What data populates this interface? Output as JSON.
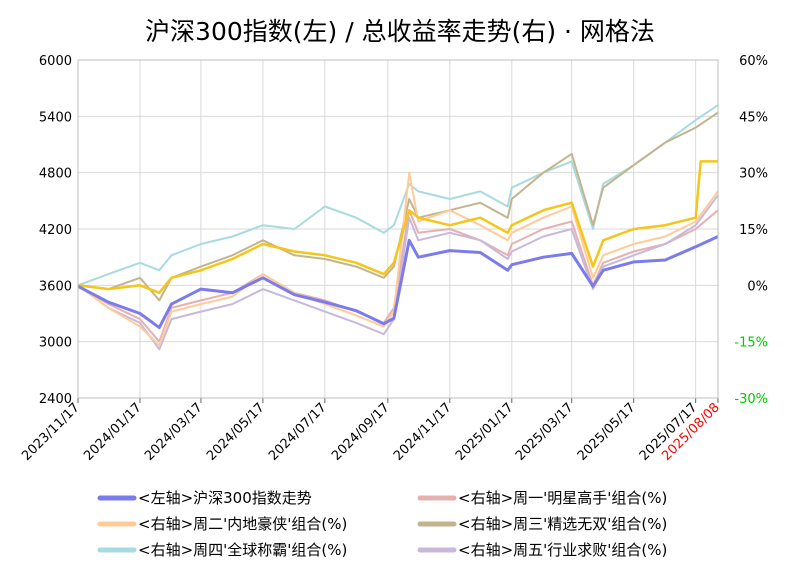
{
  "chart_data": {
    "type": "line",
    "title": "沪深300指数(左)  /  总收益率走势(右) · 网格法",
    "left_axis": {
      "ylim": [
        2400,
        6000
      ],
      "ticks": [
        "2400",
        "3000",
        "3600",
        "4200",
        "4800",
        "5400",
        "6000"
      ]
    },
    "right_axis": {
      "ylim": [
        -30,
        60
      ],
      "ticks": [
        "-30%",
        "-15%",
        "0%",
        "15%",
        "30%",
        "45%",
        "60%"
      ]
    },
    "x_tick_labels": [
      "2023/11/17",
      "2024/01/17",
      "2024/03/17",
      "2024/05/17",
      "2024/07/17",
      "2024/09/17",
      "2024/11/17",
      "2025/01/17",
      "2025/03/17",
      "2025/05/17",
      "2025/07/17",
      "2025/08/08"
    ],
    "grid": true,
    "legend_position": "bottom",
    "colors": {
      "hs300": "#7b7bee",
      "zhou1": "#e6b0b0",
      "zhou2": "#ffcc99",
      "zhou3": "#c4b48e",
      "zhou4": "#a8dbe0",
      "zhou5": "#c8b8dc",
      "zhou2_highlight": "#f5c518",
      "negative_tick": "#00cc00",
      "last_date": "#ff0000"
    },
    "series": [
      {
        "key": "hs300",
        "name": "<左轴>沪深300指数走势",
        "axis": "left",
        "x": [
          "2023/11/17",
          "2023/12/17",
          "2024/01/17",
          "2024/02/05",
          "2024/02/17",
          "2024/03/17",
          "2024/04/17",
          "2024/05/17",
          "2024/06/17",
          "2024/07/17",
          "2024/08/17",
          "2024/09/13",
          "2024/09/23",
          "2024/10/08",
          "2024/10/17",
          "2024/11/17",
          "2024/12/17",
          "2025/01/13",
          "2025/01/17",
          "2025/02/17",
          "2025/03/17",
          "2025/04/07",
          "2025/04/17",
          "2025/05/17",
          "2025/06/17",
          "2025/07/17",
          "2025/08/08"
        ],
        "y": [
          3590,
          3420,
          3300,
          3150,
          3400,
          3560,
          3520,
          3680,
          3500,
          3420,
          3330,
          3190,
          3250,
          4080,
          3900,
          3970,
          3950,
          3760,
          3820,
          3900,
          3940,
          3590,
          3760,
          3850,
          3870,
          4010,
          4120
        ]
      },
      {
        "key": "zhou1",
        "name": "<右轴>周一'明星高手'组合(%)",
        "axis": "right",
        "x": [
          "2023/11/17",
          "2023/12/17",
          "2024/01/17",
          "2024/02/05",
          "2024/02/17",
          "2024/03/17",
          "2024/04/17",
          "2024/05/17",
          "2024/06/17",
          "2024/07/17",
          "2024/08/17",
          "2024/09/13",
          "2024/09/23",
          "2024/10/08",
          "2024/10/17",
          "2024/11/17",
          "2024/12/17",
          "2025/01/13",
          "2025/01/17",
          "2025/02/17",
          "2025/03/17",
          "2025/04/07",
          "2025/04/17",
          "2025/05/17",
          "2025/06/17",
          "2025/07/17",
          "2025/08/08"
        ],
        "y": [
          0,
          -5,
          -9,
          -15,
          -6,
          -4,
          -2,
          3,
          -2,
          -4,
          -7,
          -10,
          -6,
          20,
          14,
          15,
          12,
          8,
          11,
          15,
          17,
          0,
          6,
          9,
          11,
          15,
          20
        ]
      },
      {
        "key": "zhou2",
        "name": "<右轴>周二'内地豪侠'组合(%)",
        "axis": "right",
        "x": [
          "2023/11/17",
          "2023/12/17",
          "2024/01/17",
          "2024/02/05",
          "2024/02/17",
          "2024/03/17",
          "2024/04/17",
          "2024/05/17",
          "2024/06/17",
          "2024/07/17",
          "2024/08/17",
          "2024/09/13",
          "2024/09/23",
          "2024/10/08",
          "2024/10/17",
          "2024/11/17",
          "2024/12/17",
          "2025/01/13",
          "2025/01/17",
          "2025/02/17",
          "2025/03/17",
          "2025/04/07",
          "2025/04/17",
          "2025/05/17",
          "2025/06/17",
          "2025/07/17",
          "2025/08/08"
        ],
        "y": [
          0,
          -6,
          -11,
          -16,
          -7,
          -5,
          -3,
          3,
          -2,
          -5,
          -8,
          -11,
          -7,
          30,
          17,
          20,
          16,
          12,
          14,
          18,
          21,
          2,
          8,
          11,
          13,
          17,
          25
        ]
      },
      {
        "key": "zhou3",
        "name": "<右轴>周三'精选无双'组合(%)",
        "axis": "right",
        "x": [
          "2023/11/17",
          "2023/12/17",
          "2024/01/17",
          "2024/02/05",
          "2024/02/17",
          "2024/03/17",
          "2024/04/17",
          "2024/05/17",
          "2024/06/17",
          "2024/07/17",
          "2024/08/17",
          "2024/09/13",
          "2024/09/23",
          "2024/10/08",
          "2024/10/17",
          "2024/11/17",
          "2024/12/17",
          "2025/01/13",
          "2025/01/17",
          "2025/02/17",
          "2025/03/17",
          "2025/04/07",
          "2025/04/17",
          "2025/05/17",
          "2025/06/17",
          "2025/07/17",
          "2025/08/08"
        ],
        "y": [
          0,
          -1,
          2,
          -4,
          2,
          5,
          8,
          12,
          8,
          7,
          5,
          2,
          5,
          23,
          18,
          20,
          22,
          18,
          23,
          30,
          35,
          16,
          26,
          32,
          38,
          42,
          46
        ]
      },
      {
        "key": "zhou4",
        "name": "<右轴>周四'全球称霸'组合(%)",
        "axis": "right",
        "x": [
          "2023/11/17",
          "2023/12/17",
          "2024/01/17",
          "2024/02/05",
          "2024/02/17",
          "2024/03/17",
          "2024/04/17",
          "2024/05/17",
          "2024/06/17",
          "2024/07/17",
          "2024/08/17",
          "2024/09/13",
          "2024/09/23",
          "2024/10/08",
          "2024/10/17",
          "2024/11/17",
          "2024/12/17",
          "2025/01/13",
          "2025/01/17",
          "2025/02/17",
          "2025/03/17",
          "2025/04/07",
          "2025/04/17",
          "2025/05/17",
          "2025/06/17",
          "2025/07/17",
          "2025/08/08"
        ],
        "y": [
          0,
          3,
          6,
          4,
          8,
          11,
          13,
          16,
          15,
          21,
          18,
          14,
          16,
          27,
          25,
          23,
          25,
          21,
          26,
          30,
          33,
          15,
          27,
          32,
          38,
          44,
          48
        ]
      },
      {
        "key": "zhou5",
        "name": "<右轴>周五'行业求败'组合(%)",
        "axis": "right",
        "x": [
          "2023/11/17",
          "2023/12/17",
          "2024/01/17",
          "2024/02/05",
          "2024/02/17",
          "2024/03/17",
          "2024/04/17",
          "2024/05/17",
          "2024/06/17",
          "2024/07/17",
          "2024/08/17",
          "2024/09/13",
          "2024/09/23",
          "2024/10/08",
          "2024/10/17",
          "2024/11/17",
          "2024/12/17",
          "2025/01/13",
          "2025/01/17",
          "2025/02/17",
          "2025/03/17",
          "2025/04/07",
          "2025/04/17",
          "2025/05/17",
          "2025/06/17",
          "2025/07/17",
          "2025/08/08"
        ],
        "y": [
          0,
          -6,
          -10,
          -17,
          -9,
          -7,
          -5,
          -1,
          -4,
          -7,
          -10,
          -13,
          -9,
          18,
          12,
          14,
          12,
          7,
          9,
          13,
          15,
          -1,
          5,
          8,
          11,
          16,
          24
        ]
      },
      {
        "key": "zhou2_highlight",
        "name": "",
        "axis": "right",
        "x": [
          "2023/11/17",
          "2023/12/17",
          "2024/01/17",
          "2024/02/05",
          "2024/02/17",
          "2024/03/17",
          "2024/04/17",
          "2024/05/17",
          "2024/06/17",
          "2024/07/17",
          "2024/08/17",
          "2024/09/13",
          "2024/09/23",
          "2024/10/08",
          "2024/10/17",
          "2024/11/17",
          "2024/12/17",
          "2025/01/13",
          "2025/01/17",
          "2025/02/17",
          "2025/03/17",
          "2025/04/07",
          "2025/04/17",
          "2025/05/17",
          "2025/06/17",
          "2025/07/17",
          "2025/07/22",
          "2025/08/08"
        ],
        "y": [
          0,
          -1,
          0,
          -2,
          2,
          4,
          7,
          11,
          9,
          8,
          6,
          3,
          6,
          20,
          18,
          16,
          18,
          14,
          16,
          20,
          22,
          5,
          12,
          15,
          16,
          18,
          33,
          33
        ]
      }
    ]
  }
}
